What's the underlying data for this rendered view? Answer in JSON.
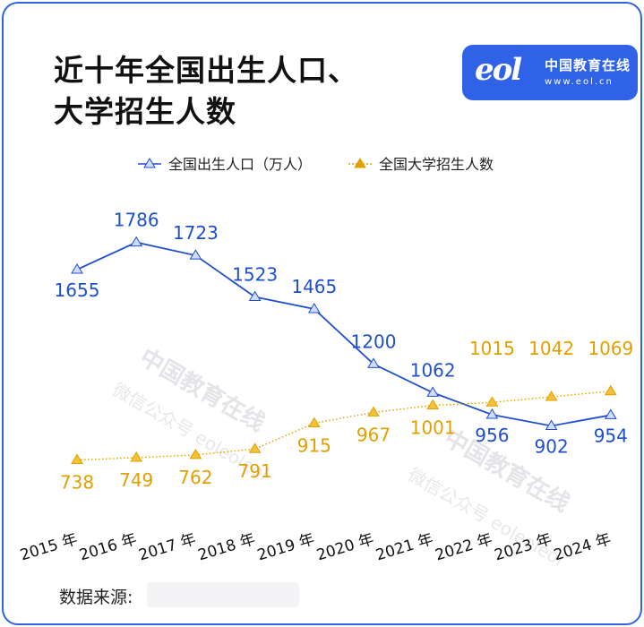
{
  "title_line1": "近十年全国出生人口、",
  "title_line2": "大学招生人数",
  "logo": {
    "mark": "eol",
    "cn": "中国教育在线",
    "url": "www.eol.cn"
  },
  "watermark": {
    "cn": "中国教育在线",
    "sub": "微信公众号 eoleoleol"
  },
  "source_label": "数据来源:",
  "colors": {
    "births": "#1f4fcf",
    "enrollment": "#e2a000",
    "frame": "#2f62e6"
  },
  "chart_data": {
    "type": "line",
    "categories": [
      "2015 年",
      "2016 年",
      "2017 年",
      "2018 年",
      "2019 年",
      "2020 年",
      "2021 年",
      "2022 年",
      "2023 年",
      "2024 年"
    ],
    "series": [
      {
        "name": "全国出生人口（万人）",
        "values": [
          1655,
          1786,
          1723,
          1523,
          1465,
          1200,
          1062,
          956,
          902,
          954
        ],
        "marker": "triangle",
        "line": "solid"
      },
      {
        "name": "全国大学招生人数",
        "values": [
          738,
          749,
          762,
          791,
          915,
          967,
          1001,
          1015,
          1042,
          1069
        ],
        "marker": "triangle",
        "line": "dotted"
      }
    ],
    "legend": "top-center",
    "grid": false
  }
}
